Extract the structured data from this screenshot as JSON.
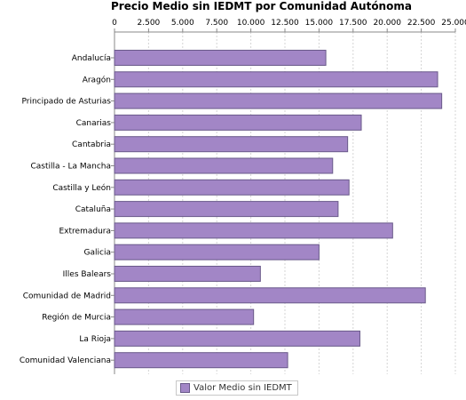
{
  "chart_data": {
    "type": "bar",
    "orientation": "horizontal",
    "title": "Precio Medio sin IEDMT por Comunidad Autónoma",
    "categories": [
      "Andalucía",
      "Aragón",
      "Principado de Asturias",
      "Canarias",
      "Cantabria",
      "Castilla - La Mancha",
      "Castilla y León",
      "Cataluña",
      "Extremadura",
      "Galicia",
      "Illes Balears",
      "Comunidad de Madrid",
      "Región de Murcia",
      "La Rioja",
      "Comunidad Valenciana"
    ],
    "series": [
      {
        "name": "Valor Medio sin IEDMT",
        "values": [
          15500,
          23700,
          24000,
          18100,
          17100,
          16000,
          17200,
          16400,
          20400,
          15000,
          10700,
          22800,
          10200,
          18000,
          12700
        ]
      }
    ],
    "xlim": [
      0,
      25000
    ],
    "xticks": [
      "0",
      "2.500",
      "5.000",
      "7.500",
      "10.000",
      "12.500",
      "15.000",
      "17.500",
      "20.000",
      "22.500",
      "25.000"
    ],
    "xaxis_position": "top",
    "grid": true,
    "legend_position": "bottom",
    "colors": {
      "bar": "#a286c6",
      "bar_border": "#6a5a8a",
      "grid": "#d4d4d4"
    }
  }
}
